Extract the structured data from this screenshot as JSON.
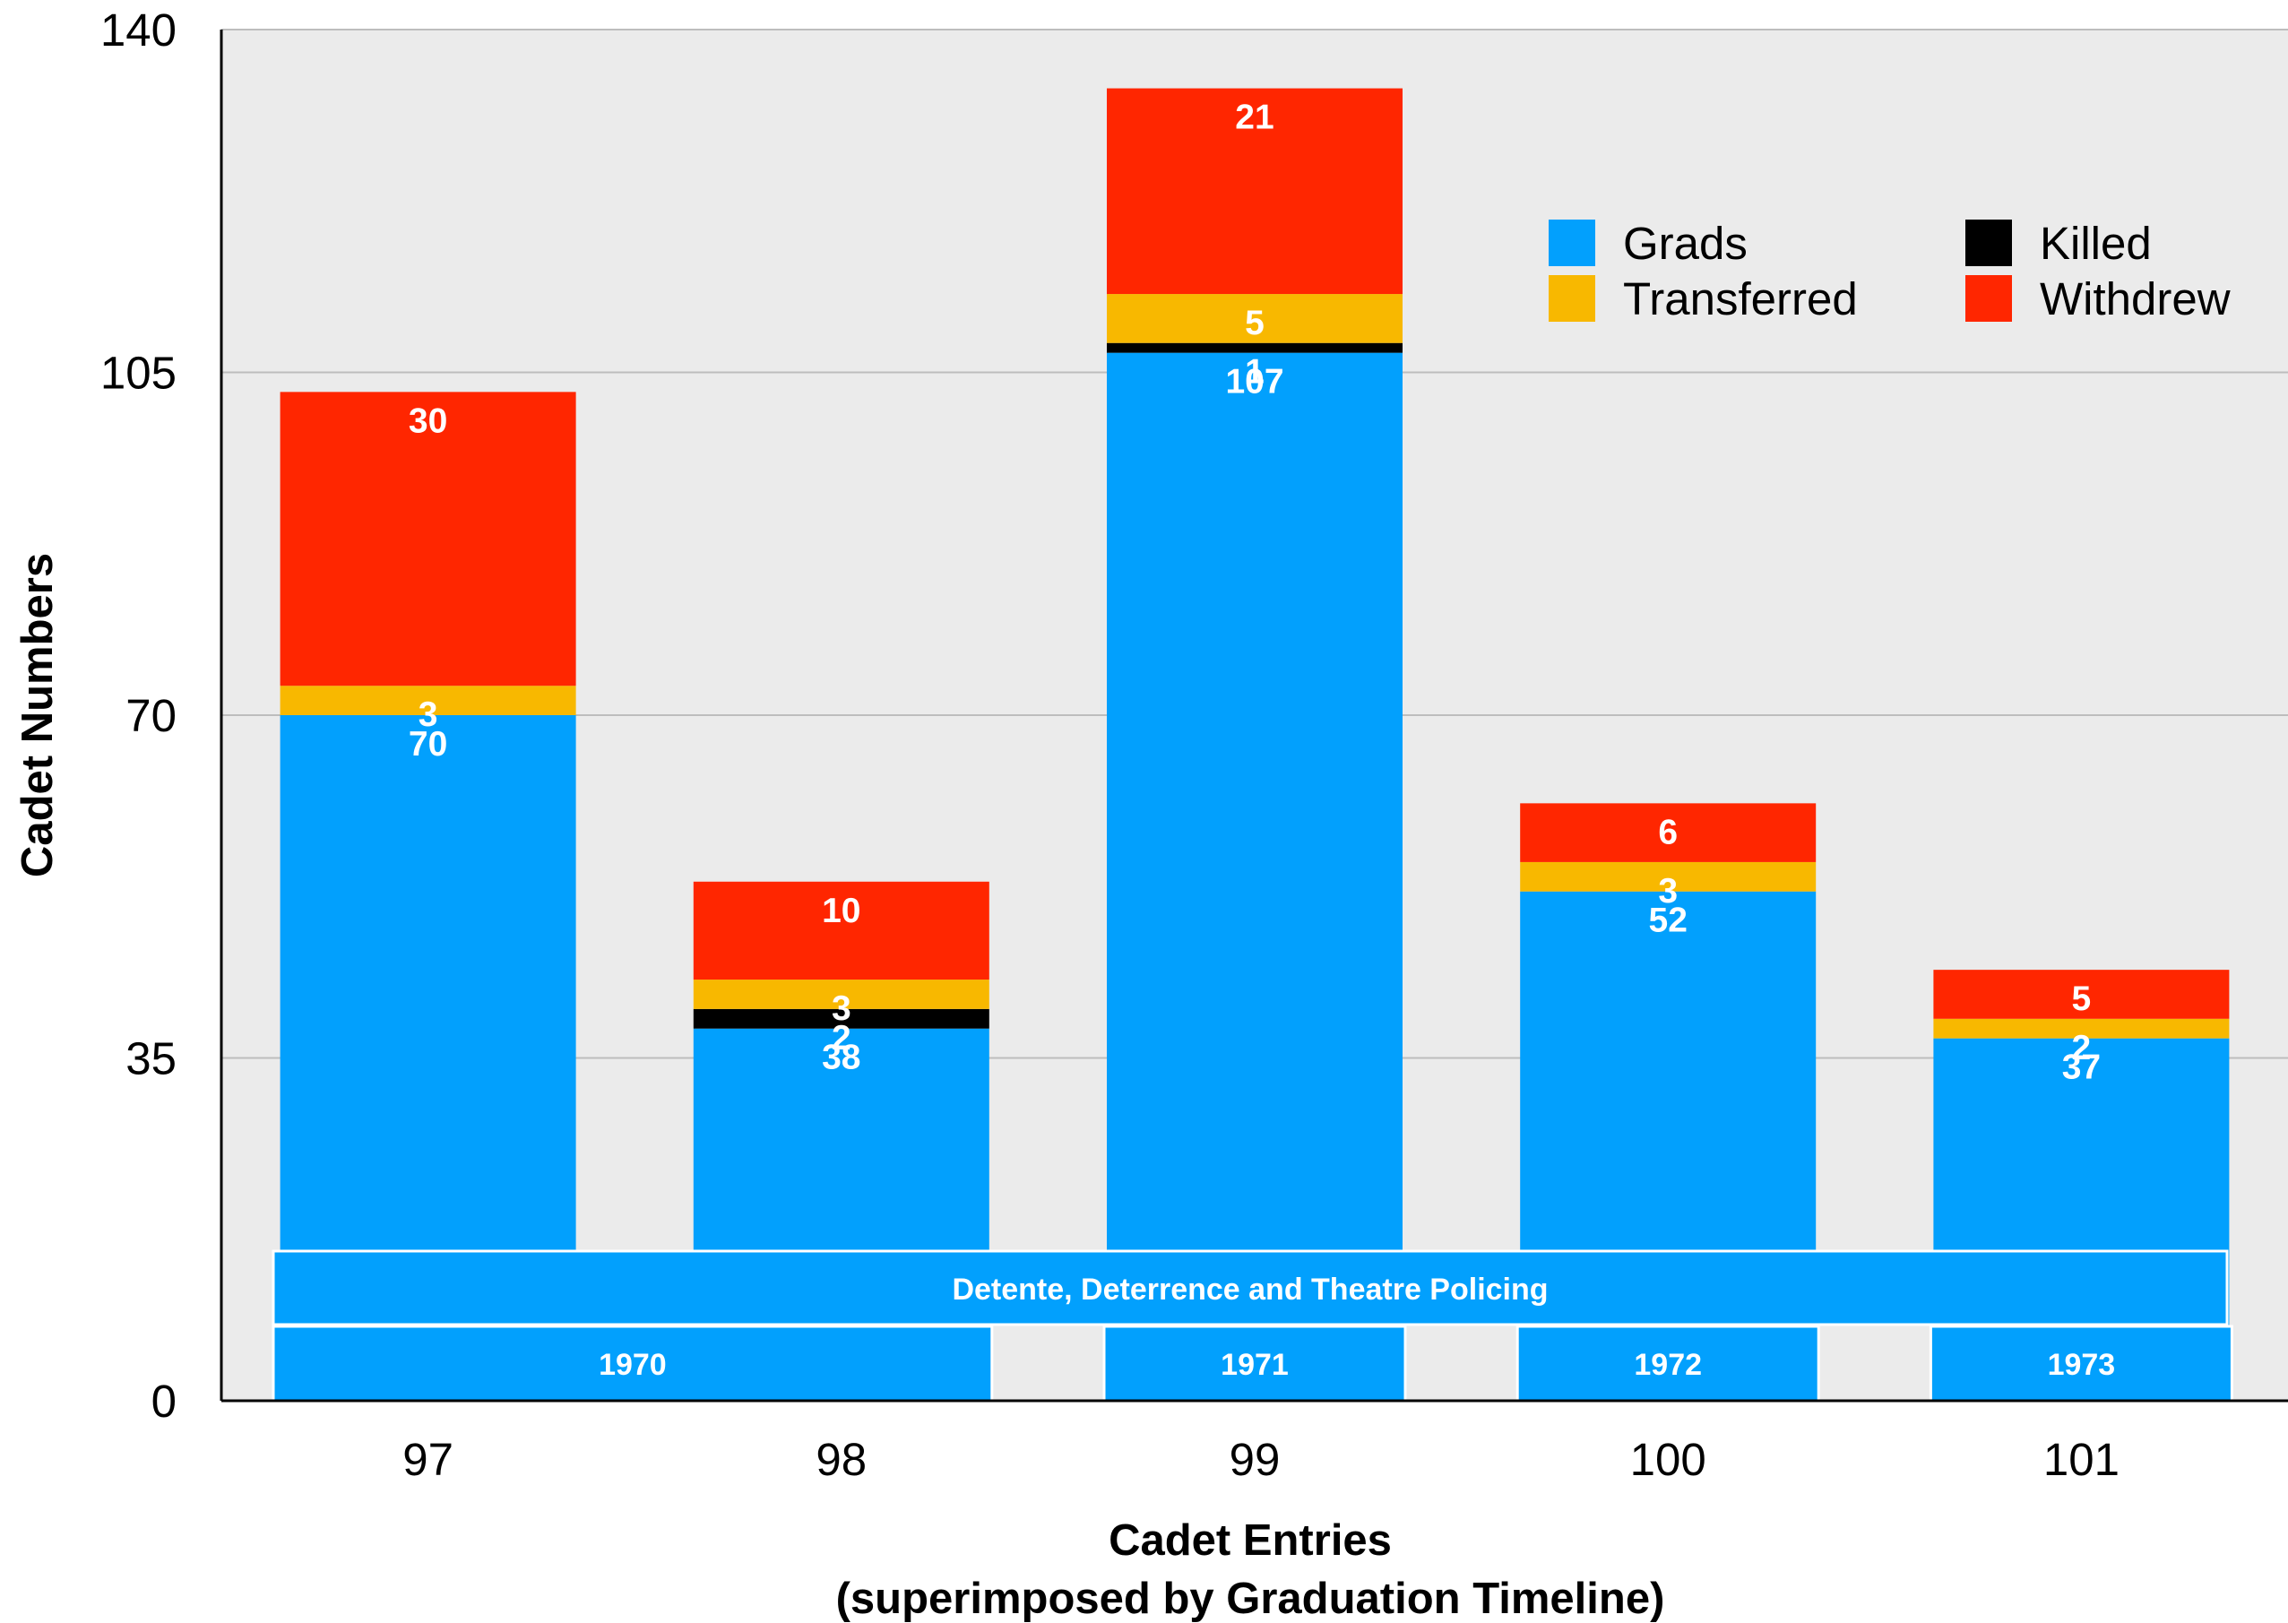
{
  "chart_data": {
    "type": "bar",
    "stacked": true,
    "xlabel": "Cadet Entries",
    "xlabel_sub": "(superimposed by Graduation Timeline)",
    "ylabel": "Cadet Numbers",
    "ylim": [
      0,
      140
    ],
    "yticks": [
      "0",
      "35",
      "70",
      "105",
      "140"
    ],
    "grid": true,
    "legend_position": "top-right",
    "categories": [
      "97",
      "98",
      "99",
      "100",
      "101"
    ],
    "series": [
      {
        "name": "Grads",
        "color": "#02A0FD",
        "values": [
          70,
          38,
          107,
          52,
          37
        ],
        "labels": [
          "70",
          "38",
          "107",
          "52",
          "37"
        ]
      },
      {
        "name": "Killed",
        "color": "#000000",
        "values": [
          0,
          2,
          1,
          0,
          0
        ],
        "labels": [
          "",
          "2",
          "1",
          "",
          ""
        ]
      },
      {
        "name": "Transferred",
        "color": "#F8B800",
        "values": [
          3,
          3,
          5,
          3,
          2
        ],
        "labels": [
          "3",
          "3",
          "5",
          "3",
          "2"
        ]
      },
      {
        "name": "Withdrew",
        "color": "#FF2600",
        "values": [
          30,
          10,
          21,
          6,
          5
        ],
        "labels": [
          "30",
          "10",
          "21",
          "6",
          "5"
        ]
      }
    ],
    "legend_order": [
      "Grads",
      "Transferred",
      "Killed",
      "Withdrew"
    ],
    "timeline": {
      "band_label": "Detente, Deterrence and Theatre Policing",
      "years": [
        {
          "label": "1970",
          "from": "97",
          "to": "98"
        },
        {
          "label": "1971",
          "from": "99",
          "to": "99"
        },
        {
          "label": "1972",
          "from": "100",
          "to": "100"
        },
        {
          "label": "1973",
          "from": "101",
          "to": "101"
        }
      ]
    },
    "plot_background": "#EBEBEB"
  }
}
